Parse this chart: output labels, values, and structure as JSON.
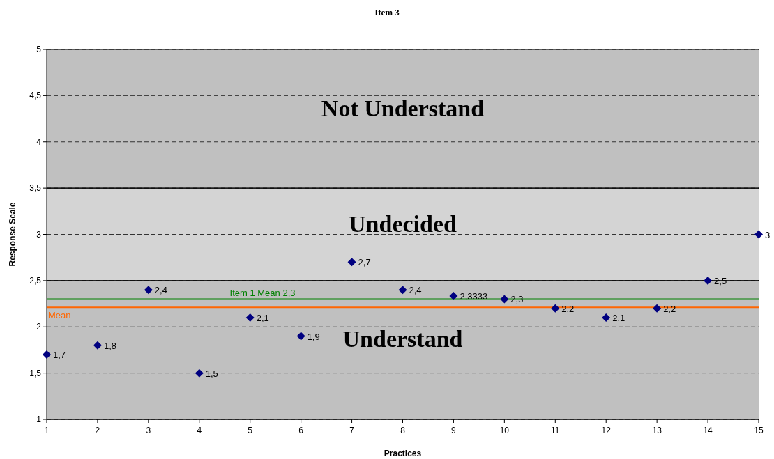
{
  "chart_data": {
    "type": "scatter",
    "title": "Item 3",
    "xlabel": "Practices",
    "ylabel": "Response Scale",
    "x": [
      1,
      2,
      3,
      4,
      5,
      6,
      7,
      8,
      9,
      10,
      11,
      12,
      13,
      14,
      15
    ],
    "series": [
      {
        "color": "#000080",
        "values": [
          1.7,
          1.8,
          2.4,
          1.5,
          2.1,
          1.9,
          2.7,
          2.4,
          2.3333,
          2.3,
          2.2,
          2.1,
          2.2,
          2.5,
          3
        ],
        "value_labels": [
          "1,7",
          "1,8",
          "2,4",
          "1,5",
          "2,1",
          "1,9",
          "2,7",
          "2,4",
          "2,3333",
          "2,3",
          "2,2",
          "2,1",
          "2,2",
          "2,5",
          "3"
        ]
      }
    ],
    "marker": "diamond",
    "xlim": [
      1,
      15
    ],
    "xticks": [
      1,
      2,
      3,
      4,
      5,
      6,
      7,
      8,
      9,
      10,
      11,
      12,
      13,
      14,
      15
    ],
    "ylim": [
      1,
      5
    ],
    "yticks": [
      1,
      {
        "value": 1.5,
        "label": "1,5"
      },
      2,
      {
        "value": 2.5,
        "label": "2,5"
      },
      3,
      {
        "value": 3.5,
        "label": "3,5"
      },
      4,
      {
        "value": 4.5,
        "label": "4,5"
      },
      5
    ],
    "grid": "y",
    "bands": [
      {
        "axis": "y",
        "from": 1,
        "to": 2.5,
        "label": "Understand",
        "color": "#c0c0c0"
      },
      {
        "axis": "y",
        "from": 2.5,
        "to": 3.5,
        "label": "Undecided",
        "color": "#d4d4d4"
      },
      {
        "axis": "y",
        "from": 3.5,
        "to": 5,
        "label": "Not Understand",
        "color": "#c0c0c0"
      }
    ],
    "ref_lines": [
      {
        "axis": "y",
        "value": 2.3,
        "label": "Item 1 Mean 2,3",
        "color": "#008000"
      },
      {
        "axis": "y",
        "value": 2.21,
        "label": "Mean",
        "color": "#ff6600"
      }
    ]
  }
}
